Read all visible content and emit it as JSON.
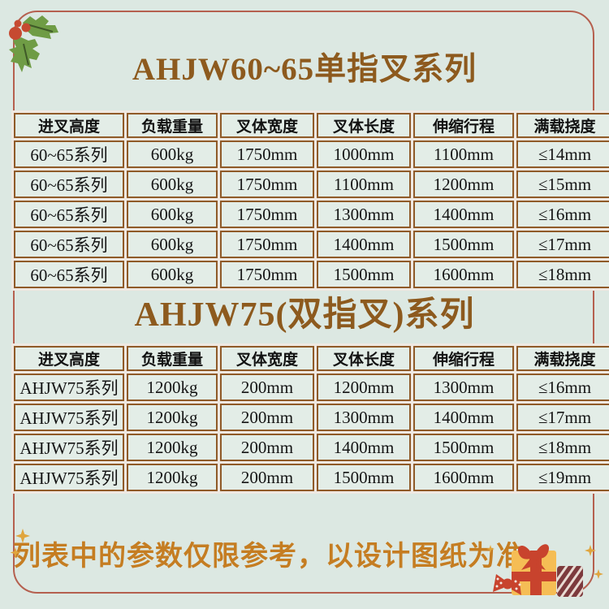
{
  "sections": [
    {
      "title": "AHJW60~65单指叉系列",
      "table": {
        "headers": [
          "进叉高度",
          "负载重量",
          "叉体宽度",
          "叉体长度",
          "伸缩行程",
          "满载挠度"
        ],
        "rows": [
          [
            "60~65系列",
            "600kg",
            "1750mm",
            "1000mm",
            "1100mm",
            "≤14mm"
          ],
          [
            "60~65系列",
            "600kg",
            "1750mm",
            "1100mm",
            "1200mm",
            "≤15mm"
          ],
          [
            "60~65系列",
            "600kg",
            "1750mm",
            "1300mm",
            "1400mm",
            "≤16mm"
          ],
          [
            "60~65系列",
            "600kg",
            "1750mm",
            "1400mm",
            "1500mm",
            "≤17mm"
          ],
          [
            "60~65系列",
            "600kg",
            "1750mm",
            "1500mm",
            "1600mm",
            "≤18mm"
          ]
        ]
      }
    },
    {
      "title": "AHJW75(双指叉)系列",
      "table": {
        "headers": [
          "进叉高度",
          "负载重量",
          "叉体宽度",
          "叉体长度",
          "伸缩行程",
          "满载挠度"
        ],
        "rows": [
          [
            "AHJW75系列",
            "1200kg",
            "200mm",
            "1200mm",
            "1300mm",
            "≤16mm"
          ],
          [
            "AHJW75系列",
            "1200kg",
            "200mm",
            "1300mm",
            "1400mm",
            "≤17mm"
          ],
          [
            "AHJW75系列",
            "1200kg",
            "200mm",
            "1400mm",
            "1500mm",
            "≤18mm"
          ],
          [
            "AHJW75系列",
            "1200kg",
            "200mm",
            "1500mm",
            "1600mm",
            "≤19mm"
          ]
        ]
      }
    }
  ],
  "footer": {
    "note": "列表中的参数仅限参考，以设计图纸为准"
  },
  "decorations": {
    "top_left": "holly-leaves-with-red-berries",
    "bottom_left": "yellow-sparkles",
    "bottom_right": "gift-boxes-with-candy-and-sparkles"
  },
  "colors": {
    "page_bg": "#dce8e2",
    "cell_bg": "#e3ede7",
    "table_border": "#8f5a28",
    "table_gap": "#efe8e1",
    "title_text": "#8d5a1e",
    "header_text": "#121212",
    "cell_text": "#141414",
    "footer_text": "#c57d22",
    "frame_border": "#b5604f",
    "holly_leaf": "#6f9c45",
    "holly_berry": "#c64a31",
    "gift_yellow": "#f5bd55",
    "gift_red": "#c8432d",
    "gift_maroon": "#7d3a3d",
    "sparkle_yellow": "#e0a53e"
  }
}
